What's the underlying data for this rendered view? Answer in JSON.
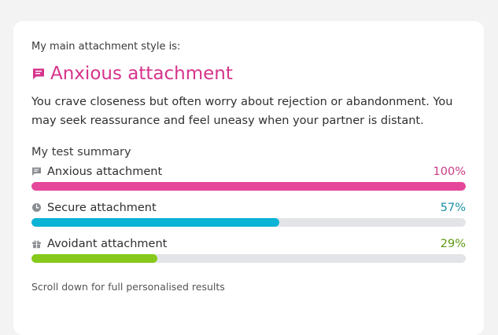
{
  "result": {
    "intro": "My main attachment style is:",
    "title": "Anxious attachment",
    "title_icon": "chat-bubble-icon",
    "title_color": "#d6338b",
    "description": "You crave closeness but often worry about rejection or abandonment. You may seek reassurance and feel uneasy when your partner is distant."
  },
  "summary": {
    "heading": "My test summary",
    "rows": [
      {
        "label": "Anxious attachment",
        "value_text": "100%",
        "percent": 100,
        "icon": "chat-bubble-icon",
        "bar_color": "#e5479a",
        "value_color": "#c93a84"
      },
      {
        "label": "Secure attachment",
        "value_text": "57%",
        "percent": 57,
        "icon": "clock-icon",
        "bar_color": "#0bb3d6",
        "value_color": "#1a8fa8"
      },
      {
        "label": "Avoidant attachment",
        "value_text": "29%",
        "percent": 29,
        "icon": "gift-icon",
        "bar_color": "#86c91a",
        "value_color": "#5d9a12"
      }
    ]
  },
  "footer": {
    "note": "Scroll down for full personalised results"
  }
}
